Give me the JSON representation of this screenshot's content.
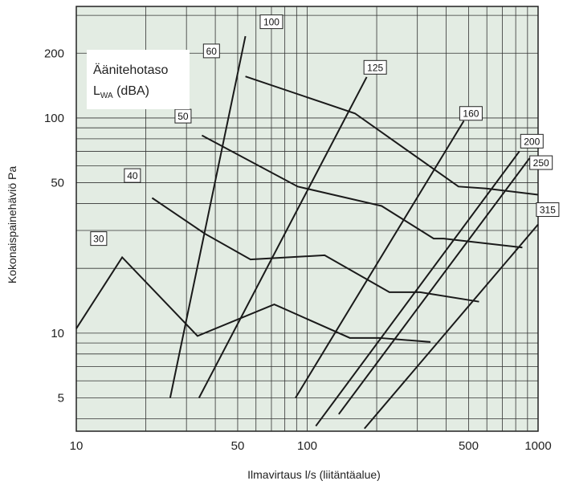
{
  "chart_data": {
    "type": "line",
    "title": "",
    "xlabel": "Ilmavirtaus l/s (liitäntäalue)",
    "ylabel": "Kokonaispainehäviö Pa",
    "xscale": "log",
    "yscale": "log",
    "xlim": [
      10,
      1000
    ],
    "ylim": [
      3.5,
      330
    ],
    "grid": true,
    "background_color": "#e3ece3",
    "line_color": "#1a1a1a",
    "x_ticks": [
      {
        "value": 10,
        "label": "10"
      },
      {
        "value": 50,
        "label": "50"
      },
      {
        "value": 100,
        "label": "100"
      },
      {
        "value": 500,
        "label": "500"
      },
      {
        "value": 1000,
        "label": "1000"
      }
    ],
    "y_ticks": [
      {
        "value": 5,
        "label": "5"
      },
      {
        "value": 10,
        "label": "10"
      },
      {
        "value": 50,
        "label": "50"
      },
      {
        "value": 100,
        "label": "100"
      },
      {
        "value": 200,
        "label": "200"
      }
    ],
    "legend": {
      "title_line1": "Äänitehotaso",
      "title_line2_main": "L",
      "title_line2_sub": "WA",
      "title_line2_rest": " (dBA)",
      "placement": "top-left"
    },
    "size_series": [
      {
        "name": "100",
        "points": [
          [
            25.5,
            5
          ],
          [
            54,
            240
          ]
        ]
      },
      {
        "name": "125",
        "points": [
          [
            34,
            5
          ],
          [
            181,
            155
          ]
        ]
      },
      {
        "name": "160",
        "points": [
          [
            89,
            5
          ],
          [
            477,
            97
          ]
        ]
      },
      {
        "name": "200",
        "points": [
          [
            109,
            3.7
          ],
          [
            830,
            70
          ]
        ]
      },
      {
        "name": "250",
        "points": [
          [
            137,
            4.2
          ],
          [
            918,
            65
          ]
        ]
      },
      {
        "name": "315",
        "points": [
          [
            177,
            3.6
          ],
          [
            1000,
            32
          ]
        ]
      }
    ],
    "sound_series": [
      {
        "name": "30",
        "points": [
          [
            10,
            10.5
          ],
          [
            15.8,
            22.5
          ],
          [
            33.5,
            9.7
          ],
          [
            72,
            13.6
          ],
          [
            153,
            9.5
          ],
          [
            205,
            9.5
          ],
          [
            342,
            9.1
          ]
        ]
      },
      {
        "name": "40",
        "points": [
          [
            21.3,
            42.5
          ],
          [
            36,
            29
          ],
          [
            56.8,
            22
          ],
          [
            119,
            23
          ],
          [
            227,
            15.5
          ],
          [
            308,
            15.5
          ],
          [
            555,
            14
          ]
        ]
      },
      {
        "name": "50",
        "points": [
          [
            35,
            83
          ],
          [
            91,
            48
          ],
          [
            210,
            39
          ],
          [
            353,
            27.5
          ],
          [
            390,
            27.5
          ],
          [
            855,
            25
          ]
        ]
      },
      {
        "name": "60",
        "points": [
          [
            54,
            156
          ],
          [
            161,
            105
          ],
          [
            452,
            48
          ],
          [
            597,
            47
          ],
          [
            1000,
            44
          ]
        ]
      }
    ],
    "box_labels": [
      {
        "text": "100",
        "x": 70,
        "y": 280
      },
      {
        "text": "60",
        "x": 38.5,
        "y": 205
      },
      {
        "text": "50",
        "x": 29,
        "y": 102
      },
      {
        "text": "40",
        "x": 17.5,
        "y": 54
      },
      {
        "text": "30",
        "x": 12.5,
        "y": 27.5
      },
      {
        "text": "125",
        "x": 197,
        "y": 172
      },
      {
        "text": "160",
        "x": 512,
        "y": 105
      },
      {
        "text": "200",
        "x": 940,
        "y": 78
      },
      {
        "text": "250",
        "x": 1030,
        "y": 62
      },
      {
        "text": "315",
        "x": 1100,
        "y": 37.5
      }
    ]
  }
}
